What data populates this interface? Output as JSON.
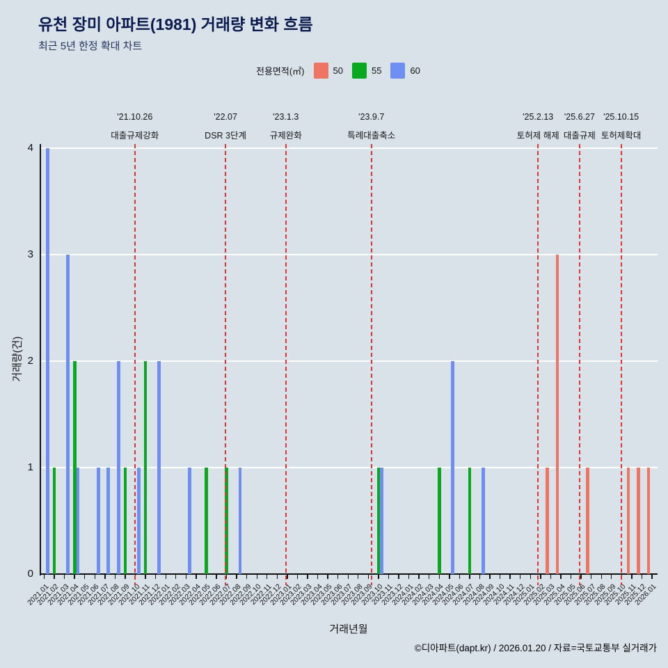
{
  "page": {
    "title": "유천 장미 아파트(1981) 거래량 변화 흐름",
    "subtitle": "최근 5년 한정 확대 차트",
    "footer": "©디아파트(dapt.kr) / 2026.01.20 / 자료=국토교통부 실거래가"
  },
  "legend": {
    "label": "전용면적(㎡)",
    "items": [
      {
        "name": "50",
        "color": "#ee7464"
      },
      {
        "name": "55",
        "color": "#0aa81e"
      },
      {
        "name": "60",
        "color": "#6e8ef2"
      }
    ]
  },
  "chart_data": {
    "type": "bar",
    "title": "유천 장미 아파트(1981) 거래량 변화 흐름",
    "subtitle": "최근 5년 한정 확대 차트",
    "xlabel": "거래년월",
    "ylabel": "거래량(건)",
    "ylim": [
      0,
      4
    ],
    "yticks": [
      0,
      1,
      2,
      3,
      4
    ],
    "grid": true,
    "legend_position": "top",
    "annotation_color": "#e23333",
    "categories": [
      "2021.01",
      "2021.02",
      "2021.03",
      "2021.04",
      "2021.05",
      "2021.06",
      "2021.07",
      "2021.08",
      "2021.09",
      "2021.10",
      "2021.11",
      "2021.12",
      "2022.01",
      "2022.02",
      "2022.03",
      "2022.04",
      "2022.05",
      "2022.06",
      "2022.07",
      "2022.08",
      "2022.09",
      "2022.10",
      "2022.11",
      "2022.12",
      "2023.01",
      "2023.02",
      "2023.03",
      "2023.04",
      "2023.05",
      "2023.06",
      "2023.07",
      "2023.08",
      "2023.09",
      "2023.10",
      "2023.11",
      "2023.12",
      "2024.01",
      "2024.02",
      "2024.03",
      "2024.04",
      "2024.05",
      "2024.06",
      "2024.07",
      "2024.08",
      "2024.09",
      "2024.10",
      "2024.11",
      "2024.12",
      "2025.01",
      "2025.02",
      "2025.03",
      "2025.04",
      "2025.05",
      "2025.06",
      "2025.07",
      "2025.08",
      "2025.09",
      "2025.10",
      "2025.11",
      "2025.12",
      "2026.01"
    ],
    "series": [
      {
        "name": "50",
        "color": "#ee7464",
        "points": [
          [
            "2025.03",
            1
          ],
          [
            "2025.04",
            3
          ],
          [
            "2025.07",
            1
          ],
          [
            "2025.11",
            1
          ],
          [
            "2025.12",
            1
          ],
          [
            "2026.01",
            1
          ]
        ]
      },
      {
        "name": "55",
        "color": "#0aa81e",
        "points": [
          [
            "2021.02",
            1
          ],
          [
            "2021.04",
            2
          ],
          [
            "2021.09",
            1
          ],
          [
            "2021.11",
            2
          ],
          [
            "2022.05",
            1
          ],
          [
            "2022.07",
            1
          ],
          [
            "2023.10",
            1
          ],
          [
            "2024.04",
            1
          ],
          [
            "2024.07",
            1
          ]
        ]
      },
      {
        "name": "60",
        "color": "#6e8ef2",
        "points": [
          [
            "2021.01",
            4
          ],
          [
            "2021.03",
            3
          ],
          [
            "2021.04",
            1
          ],
          [
            "2021.06",
            1
          ],
          [
            "2021.07",
            1
          ],
          [
            "2021.08",
            2
          ],
          [
            "2021.10",
            1
          ],
          [
            "2021.12",
            2
          ],
          [
            "2022.03",
            1
          ],
          [
            "2022.08",
            1
          ],
          [
            "2023.10",
            1
          ],
          [
            "2024.05",
            2
          ],
          [
            "2024.08",
            1
          ]
        ]
      }
    ],
    "annotations": [
      {
        "date": "'21.10.26",
        "label": "대출규제강화",
        "x_index": 8.95
      },
      {
        "date": "'22.07",
        "label": "DSR 3단계",
        "x_index": 17.9
      },
      {
        "date": "'23.1.3",
        "label": "규제완화",
        "x_index": 23.85
      },
      {
        "date": "'23.9.7",
        "label": "특례대출축소",
        "x_index": 32.3
      },
      {
        "date": "'25.2.13",
        "label": "토허제 해제",
        "x_index": 48.75
      },
      {
        "date": "'25.6.27",
        "label": "대출규제",
        "x_index": 52.85
      },
      {
        "date": "'25.10.15",
        "label": "토허제확대",
        "x_index": 56.95
      }
    ]
  }
}
